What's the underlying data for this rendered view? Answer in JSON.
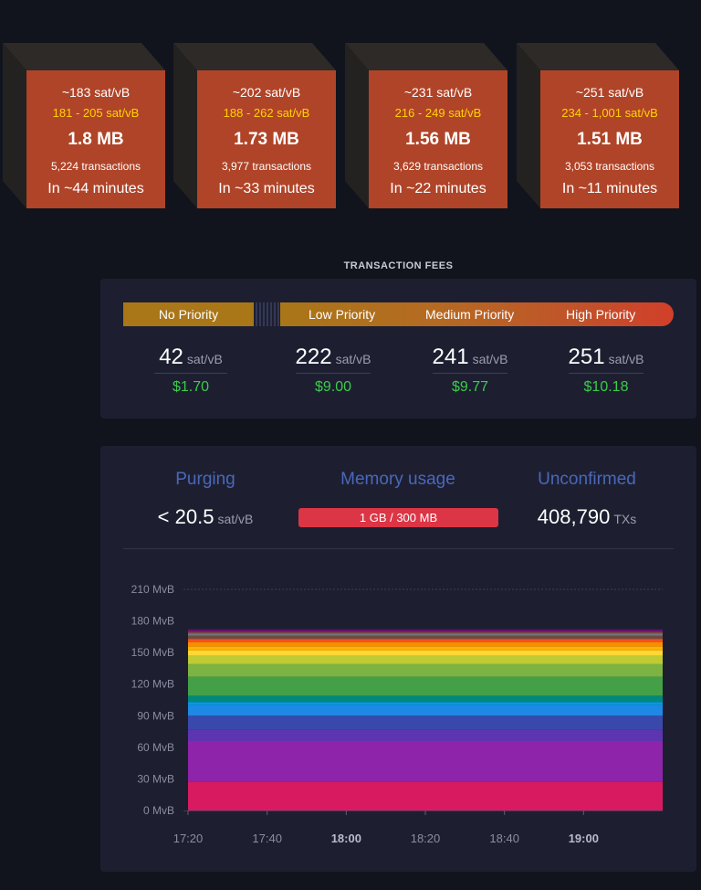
{
  "blocks": [
    {
      "fee_median": "~183 sat/vB",
      "fee_range": "181 - 205 sat/vB",
      "size": "1.8 MB",
      "transactions": "5,224 transactions",
      "eta": "In ~44 minutes"
    },
    {
      "fee_median": "~202 sat/vB",
      "fee_range": "188 - 262 sat/vB",
      "size": "1.73 MB",
      "transactions": "3,977 transactions",
      "eta": "In ~33 minutes"
    },
    {
      "fee_median": "~231 sat/vB",
      "fee_range": "216 - 249 sat/vB",
      "size": "1.56 MB",
      "transactions": "3,629 transactions",
      "eta": "In ~22 minutes"
    },
    {
      "fee_median": "~251 sat/vB",
      "fee_range": "234 - 1,001 sat/vB",
      "size": "1.51 MB",
      "transactions": "3,053 transactions",
      "eta": "In ~11 minutes"
    }
  ],
  "fees": {
    "title": "TRANSACTION FEES",
    "priorities": [
      "No Priority",
      "Low Priority",
      "Medium Priority",
      "High Priority"
    ],
    "values": [
      {
        "fee": "42",
        "unit": "sat/vB",
        "usd": "$1.70"
      },
      {
        "fee": "222",
        "unit": "sat/vB",
        "usd": "$9.00"
      },
      {
        "fee": "241",
        "unit": "sat/vB",
        "usd": "$9.77"
      },
      {
        "fee": "251",
        "unit": "sat/vB",
        "usd": "$10.18"
      }
    ]
  },
  "stats": {
    "purging_label": "Purging",
    "purging_value": "< 20.5",
    "purging_unit": "sat/vB",
    "memory_label": "Memory usage",
    "memory_value": "1 GB / 300 MB",
    "memory_fraction": 1.0,
    "unconfirmed_label": "Unconfirmed",
    "unconfirmed_value": "408,790",
    "unconfirmed_unit": "TXs"
  },
  "colors": {
    "block_front": "#b04428",
    "fee_range": "#ffd300",
    "usd": "#3bcc49",
    "stat_title": "#4a68b9",
    "memory_bar": "#dc3545"
  },
  "chart_data": {
    "type": "area",
    "stacked": true,
    "y_ticks": [
      "0 MvB",
      "30 MvB",
      "60 MvB",
      "90 MvB",
      "120 MvB",
      "150 MvB",
      "180 MvB",
      "210 MvB"
    ],
    "ylim": [
      0,
      210
    ],
    "x_ticks": [
      {
        "label": "17:20",
        "minutes": 0,
        "bold": false
      },
      {
        "label": "17:40",
        "minutes": 20,
        "bold": false
      },
      {
        "label": "18:00",
        "minutes": 40,
        "bold": true
      },
      {
        "label": "18:20",
        "minutes": 60,
        "bold": false
      },
      {
        "label": "18:40",
        "minutes": 80,
        "bold": false
      },
      {
        "label": "19:00",
        "minutes": 100,
        "bold": true
      }
    ],
    "x_range_minutes": [
      0,
      120
    ],
    "data_range_minutes": [
      0,
      120
    ],
    "grid": "horizontal",
    "series": [
      {
        "color": "#d81b60",
        "values": [
          27,
          27
        ]
      },
      {
        "color": "#8e24aa",
        "values": [
          39,
          39
        ]
      },
      {
        "color": "#5e35b1",
        "values": [
          11,
          11
        ]
      },
      {
        "color": "#3949ab",
        "values": [
          13,
          13
        ]
      },
      {
        "color": "#1e88e5",
        "values": [
          10,
          10
        ]
      },
      {
        "color": "#039be5",
        "values": [
          3,
          3
        ]
      },
      {
        "color": "#00897b",
        "values": [
          6,
          6
        ]
      },
      {
        "color": "#43a047",
        "values": [
          18,
          18
        ]
      },
      {
        "color": "#7cb342",
        "values": [
          12,
          12
        ]
      },
      {
        "color": "#c0ca33",
        "values": [
          8,
          8
        ]
      },
      {
        "color": "#fdd835",
        "values": [
          5,
          5
        ]
      },
      {
        "color": "#ffb300",
        "values": [
          4,
          4
        ]
      },
      {
        "color": "#fb8c00",
        "values": [
          4,
          4
        ]
      },
      {
        "color": "#f4511e",
        "values": [
          3,
          3
        ]
      },
      {
        "color": "#6d4c41",
        "values": [
          3,
          3
        ]
      },
      {
        "color": "#757575",
        "values": [
          2,
          2
        ]
      },
      {
        "color": "#546e7a",
        "values": [
          1,
          1
        ]
      },
      {
        "color": "#b71c1c",
        "values": [
          1,
          1
        ]
      },
      {
        "color": "#880e4f",
        "values": [
          1,
          1
        ]
      },
      {
        "color": "#4a148c",
        "values": [
          1,
          1
        ]
      }
    ]
  }
}
